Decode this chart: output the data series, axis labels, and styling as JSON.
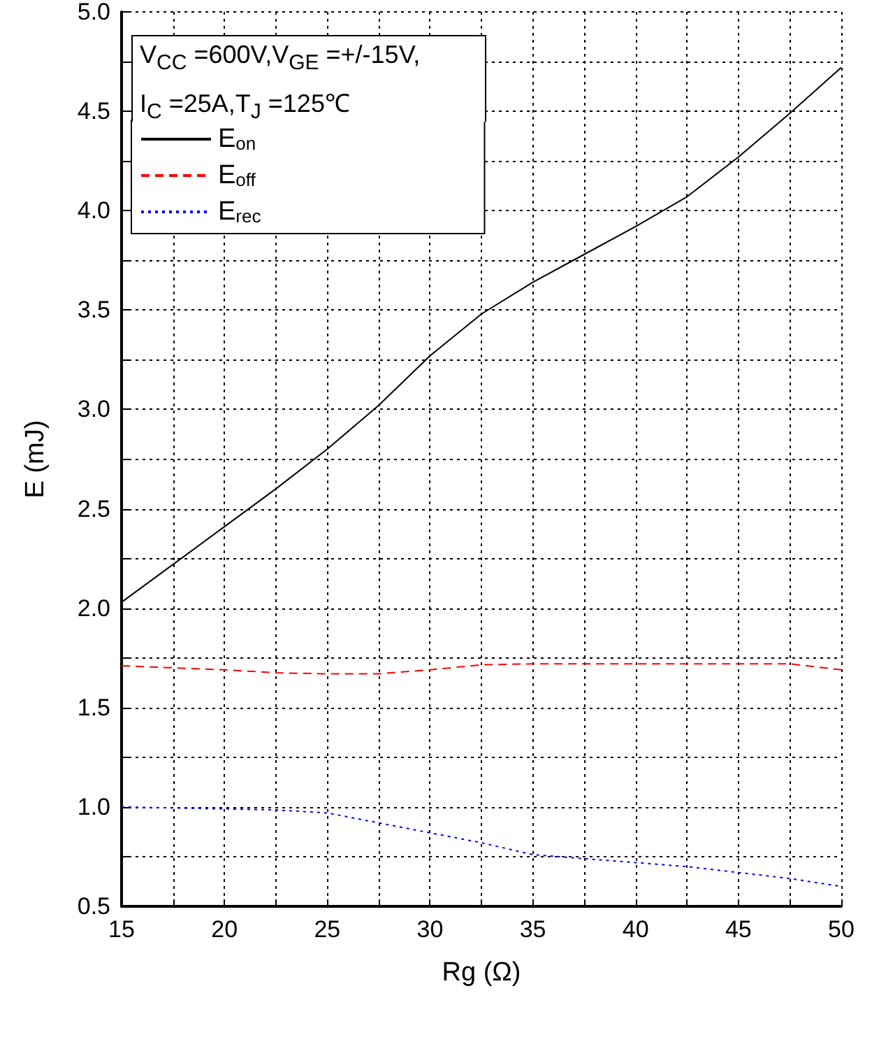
{
  "chart_data": {
    "type": "line",
    "xlabel": "Rg (Ω)",
    "ylabel": "E (mJ)",
    "legend_title": "V$_{CC}$ =600V,V$_{GE}$ =+/-15V,\nI$_{C}$ =25A,T$_{J}$ =125℃",
    "legend": "top left",
    "grid": true,
    "marker": "none",
    "x": [
      15,
      17.5,
      20,
      22.5,
      25,
      27.5,
      30,
      32.5,
      35,
      37.5,
      40,
      42.5,
      45,
      47.5,
      50
    ],
    "xlim": [
      15,
      50
    ],
    "xticks": [
      15,
      {
        "value": 17.5,
        "label": null
      },
      20,
      {
        "value": 22.5,
        "label": null
      },
      25,
      {
        "value": 27.5,
        "label": null
      },
      30,
      {
        "value": 32.5,
        "label": null
      },
      35,
      {
        "value": 37.5,
        "label": null
      },
      40,
      {
        "value": 42.5,
        "label": null
      },
      45,
      {
        "value": 47.5,
        "label": null
      },
      50
    ],
    "ylim": [
      0.5,
      5.0
    ],
    "yticks": [
      {
        "value": 0.5,
        "label": "0.5"
      },
      {
        "value": 0.75,
        "label": null
      },
      {
        "value": 1.0,
        "label": "1.0"
      },
      {
        "value": 1.25,
        "label": null
      },
      {
        "value": 1.5,
        "label": "1.5"
      },
      {
        "value": 1.75,
        "label": null
      },
      {
        "value": 2.0,
        "label": "2.0"
      },
      {
        "value": 2.25,
        "label": null
      },
      {
        "value": 2.5,
        "label": "2.5"
      },
      {
        "value": 2.75,
        "label": null
      },
      {
        "value": 3.0,
        "label": "3.0"
      },
      {
        "value": 3.25,
        "label": null
      },
      {
        "value": 3.5,
        "label": "3.5"
      },
      {
        "value": 3.75,
        "label": null
      },
      {
        "value": 4.0,
        "label": "4.0"
      },
      {
        "value": 4.25,
        "label": null
      },
      {
        "value": 4.5,
        "label": "4.5"
      },
      {
        "value": 4.75,
        "label": null
      },
      {
        "value": 5.0,
        "label": "5.0"
      }
    ],
    "series": [
      {
        "name": "E$_{on}$",
        "color": "#000000",
        "line_style": "solid",
        "values": [
          2.03,
          2.22,
          2.41,
          2.6,
          2.8,
          3.02,
          3.27,
          3.48,
          3.64,
          3.78,
          3.92,
          4.07,
          4.27,
          4.49,
          4.72
        ]
      },
      {
        "name": "E$_{off}$",
        "color": "#ff0000",
        "line_style": "dashed",
        "values": [
          1.71,
          1.7,
          1.69,
          1.675,
          1.67,
          1.67,
          1.69,
          1.715,
          1.72,
          1.72,
          1.72,
          1.72,
          1.72,
          1.72,
          1.69
        ]
      },
      {
        "name": "E$_{rec}$",
        "color": "#0000ff",
        "line_style": "dotted",
        "values": [
          1.0,
          0.995,
          0.99,
          0.985,
          0.97,
          0.92,
          0.87,
          0.82,
          0.76,
          0.74,
          0.72,
          0.7,
          0.67,
          0.64,
          0.6
        ]
      }
    ]
  }
}
